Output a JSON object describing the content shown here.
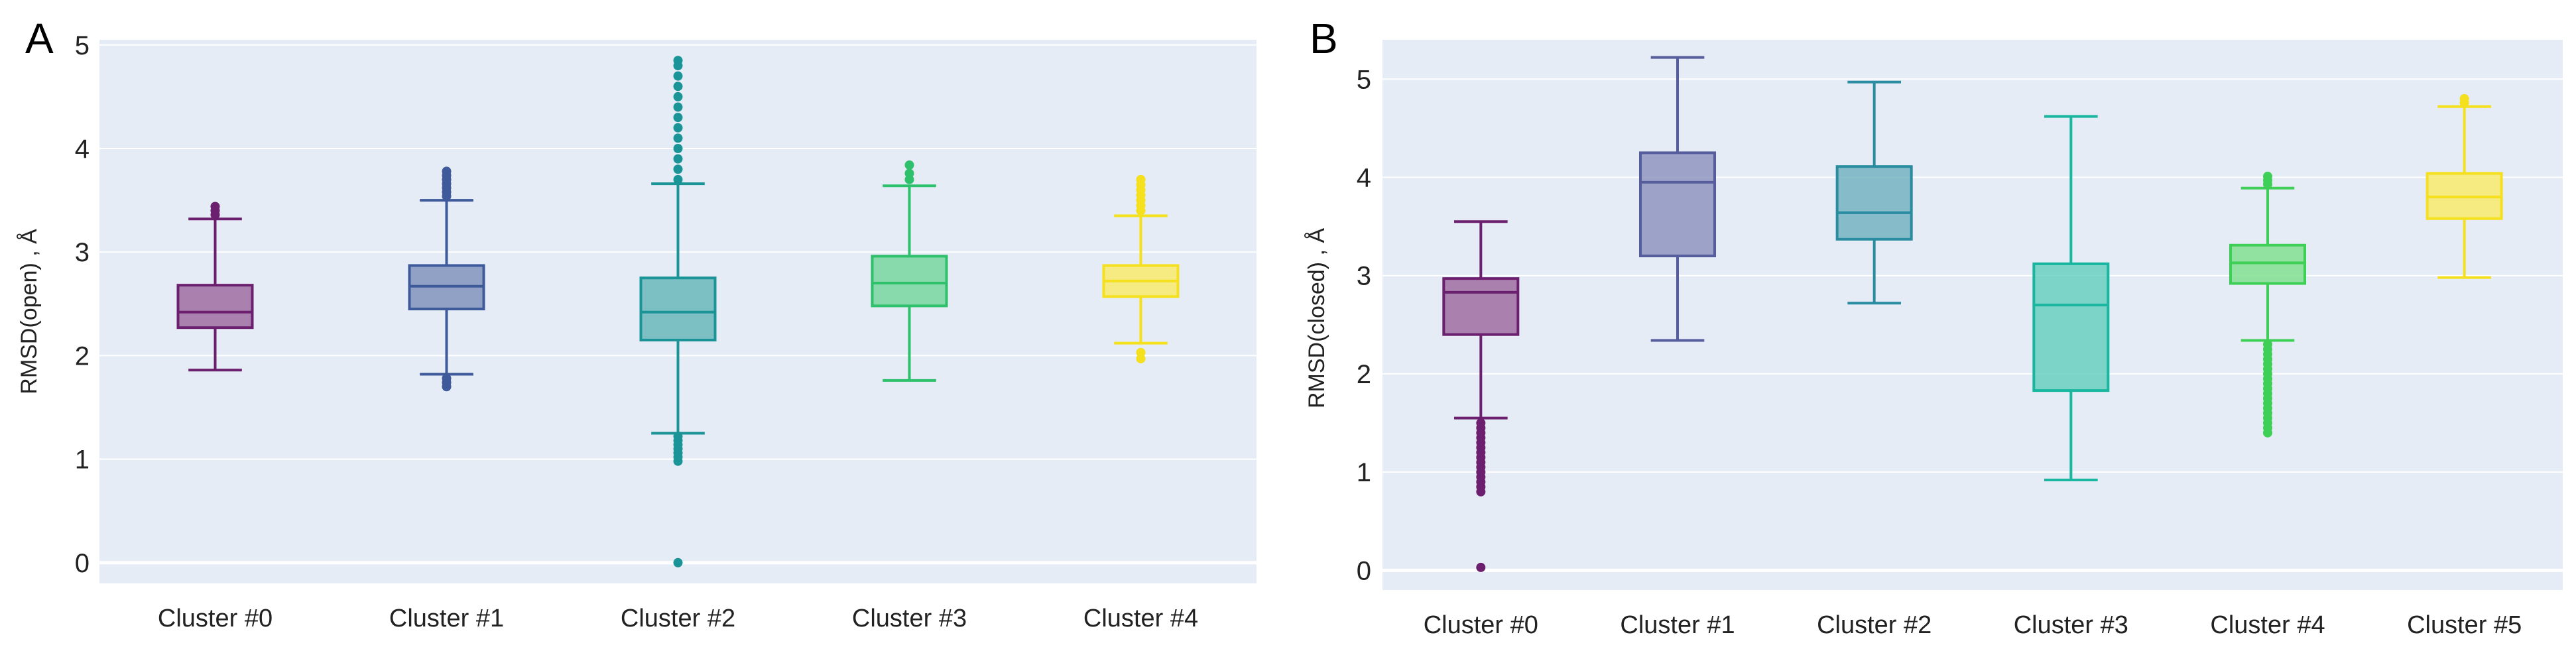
{
  "chart_data": [
    {
      "panel": "A",
      "type": "box",
      "title": "",
      "xlabel": "",
      "ylabel": "RMSD(open) , Å",
      "ylim": [
        -0.2,
        5.05
      ],
      "yticks": [
        0,
        1,
        2,
        3,
        4,
        5
      ],
      "grid": true,
      "categories": [
        "Cluster #0",
        "Cluster #1",
        "Cluster #2",
        "Cluster #3",
        "Cluster #4"
      ],
      "colors": [
        "#6b1f6e",
        "#3e5a9a",
        "#1a9496",
        "#2fc06b",
        "#f4e01c"
      ],
      "boxes": [
        {
          "q1": 2.27,
          "median": 2.42,
          "q3": 2.68,
          "whisker_low": 1.86,
          "whisker_high": 3.32,
          "outliers": [
            3.36,
            3.4,
            3.44
          ]
        },
        {
          "q1": 2.45,
          "median": 2.67,
          "q3": 2.87,
          "whisker_low": 1.82,
          "whisker_high": 3.5,
          "outliers": [
            1.7,
            1.74,
            1.78,
            3.54,
            3.58,
            3.62,
            3.66,
            3.7,
            3.74,
            3.78
          ]
        },
        {
          "q1": 2.15,
          "median": 2.42,
          "q3": 2.75,
          "whisker_low": 1.25,
          "whisker_high": 3.66,
          "outliers": [
            0.0,
            0.98,
            1.02,
            1.06,
            1.1,
            1.14,
            1.18,
            1.22,
            3.7,
            3.8,
            3.9,
            4.0,
            4.1,
            4.2,
            4.3,
            4.4,
            4.5,
            4.6,
            4.7,
            4.8,
            4.85
          ]
        },
        {
          "q1": 2.48,
          "median": 2.7,
          "q3": 2.96,
          "whisker_low": 1.76,
          "whisker_high": 3.64,
          "outliers": [
            3.7,
            3.76,
            3.84
          ]
        },
        {
          "q1": 2.57,
          "median": 2.72,
          "q3": 2.87,
          "whisker_low": 2.12,
          "whisker_high": 3.35,
          "outliers": [
            1.97,
            2.03,
            3.4,
            3.45,
            3.5,
            3.55,
            3.6,
            3.65,
            3.7
          ]
        }
      ]
    },
    {
      "panel": "B",
      "type": "box",
      "title": "",
      "xlabel": "",
      "ylabel": "RMSD(closed) , Å",
      "ylim": [
        -0.2,
        5.4
      ],
      "yticks": [
        0,
        1,
        2,
        3,
        4,
        5
      ],
      "grid": true,
      "categories": [
        "Cluster #0",
        "Cluster #1",
        "Cluster #2",
        "Cluster #3",
        "Cluster #4",
        "Cluster #5"
      ],
      "colors": [
        "#6b1f6e",
        "#565d9c",
        "#2a8ca0",
        "#19b6a0",
        "#3ecf56",
        "#f4e01c"
      ],
      "boxes": [
        {
          "q1": 2.4,
          "median": 2.83,
          "q3": 2.97,
          "whisker_low": 1.55,
          "whisker_high": 3.55,
          "outliers": [
            0.03,
            0.8,
            0.85,
            0.9,
            0.95,
            1.0,
            1.05,
            1.1,
            1.15,
            1.2,
            1.25,
            1.3,
            1.35,
            1.4,
            1.45,
            1.5
          ]
        },
        {
          "q1": 3.2,
          "median": 3.95,
          "q3": 4.25,
          "whisker_low": 2.34,
          "whisker_high": 5.22,
          "outliers": []
        },
        {
          "q1": 3.37,
          "median": 3.64,
          "q3": 4.11,
          "whisker_low": 2.72,
          "whisker_high": 4.97,
          "outliers": []
        },
        {
          "q1": 1.83,
          "median": 2.7,
          "q3": 3.12,
          "whisker_low": 0.92,
          "whisker_high": 4.62,
          "outliers": []
        },
        {
          "q1": 2.92,
          "median": 3.13,
          "q3": 3.31,
          "whisker_low": 2.34,
          "whisker_high": 3.89,
          "outliers": [
            1.4,
            1.45,
            1.5,
            1.55,
            1.6,
            1.65,
            1.7,
            1.75,
            1.8,
            1.85,
            1.9,
            1.95,
            2.0,
            2.05,
            2.1,
            2.15,
            2.2,
            2.25,
            2.3,
            3.93,
            3.97,
            4.01
          ]
        },
        {
          "q1": 3.58,
          "median": 3.8,
          "q3": 4.04,
          "whisker_low": 2.98,
          "whisker_high": 4.72,
          "outliers": [
            4.76,
            4.8
          ]
        }
      ]
    }
  ]
}
